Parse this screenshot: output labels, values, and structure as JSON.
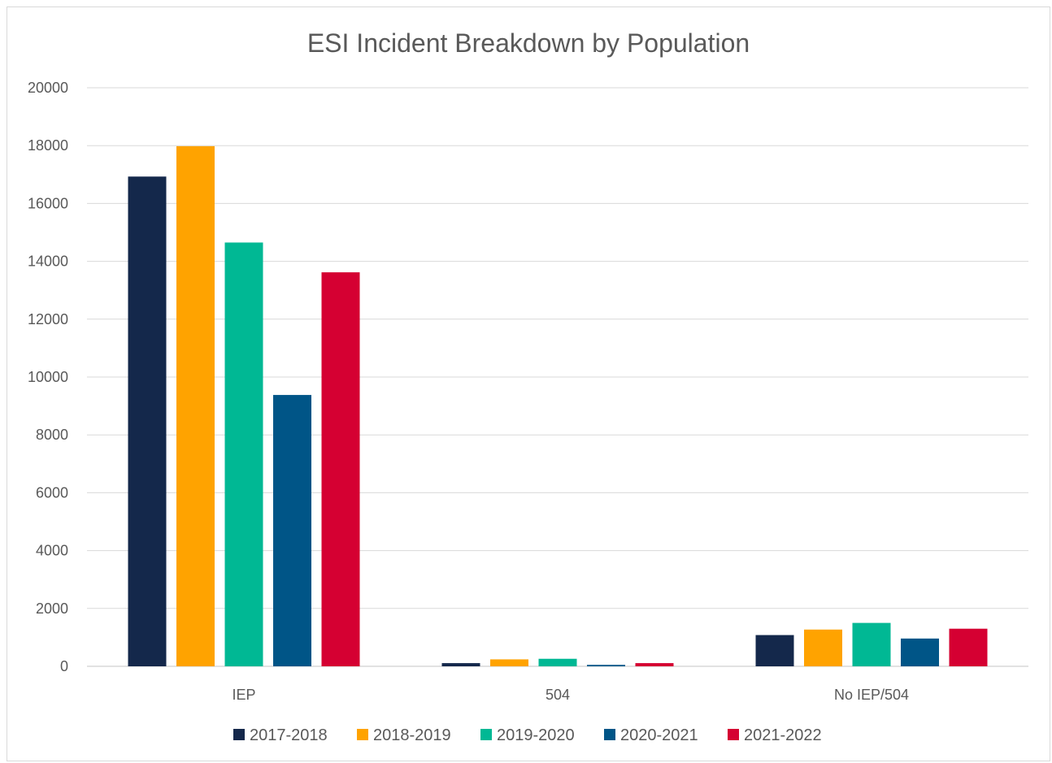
{
  "chart_data": {
    "type": "bar",
    "title": "ESI Incident Breakdown by Population",
    "xlabel": "",
    "ylabel": "",
    "categories": [
      "IEP",
      "504",
      "No IEP/504"
    ],
    "ylim": [
      0,
      20000
    ],
    "yticks": [
      0,
      2000,
      4000,
      6000,
      8000,
      10000,
      12000,
      14000,
      16000,
      18000,
      20000
    ],
    "grid": true,
    "legend_position": "bottom",
    "series": [
      {
        "name": "2017-2018",
        "color": "#14284b",
        "values": [
          16930,
          110,
          1080
        ]
      },
      {
        "name": "2018-2019",
        "color": "#ffa300",
        "values": [
          17980,
          240,
          1270
        ]
      },
      {
        "name": "2019-2020",
        "color": "#00b894",
        "values": [
          14650,
          260,
          1500
        ]
      },
      {
        "name": "2020-2021",
        "color": "#005587",
        "values": [
          9380,
          50,
          960
        ]
      },
      {
        "name": "2021-2022",
        "color": "#d50032",
        "values": [
          13620,
          110,
          1300
        ]
      }
    ]
  }
}
